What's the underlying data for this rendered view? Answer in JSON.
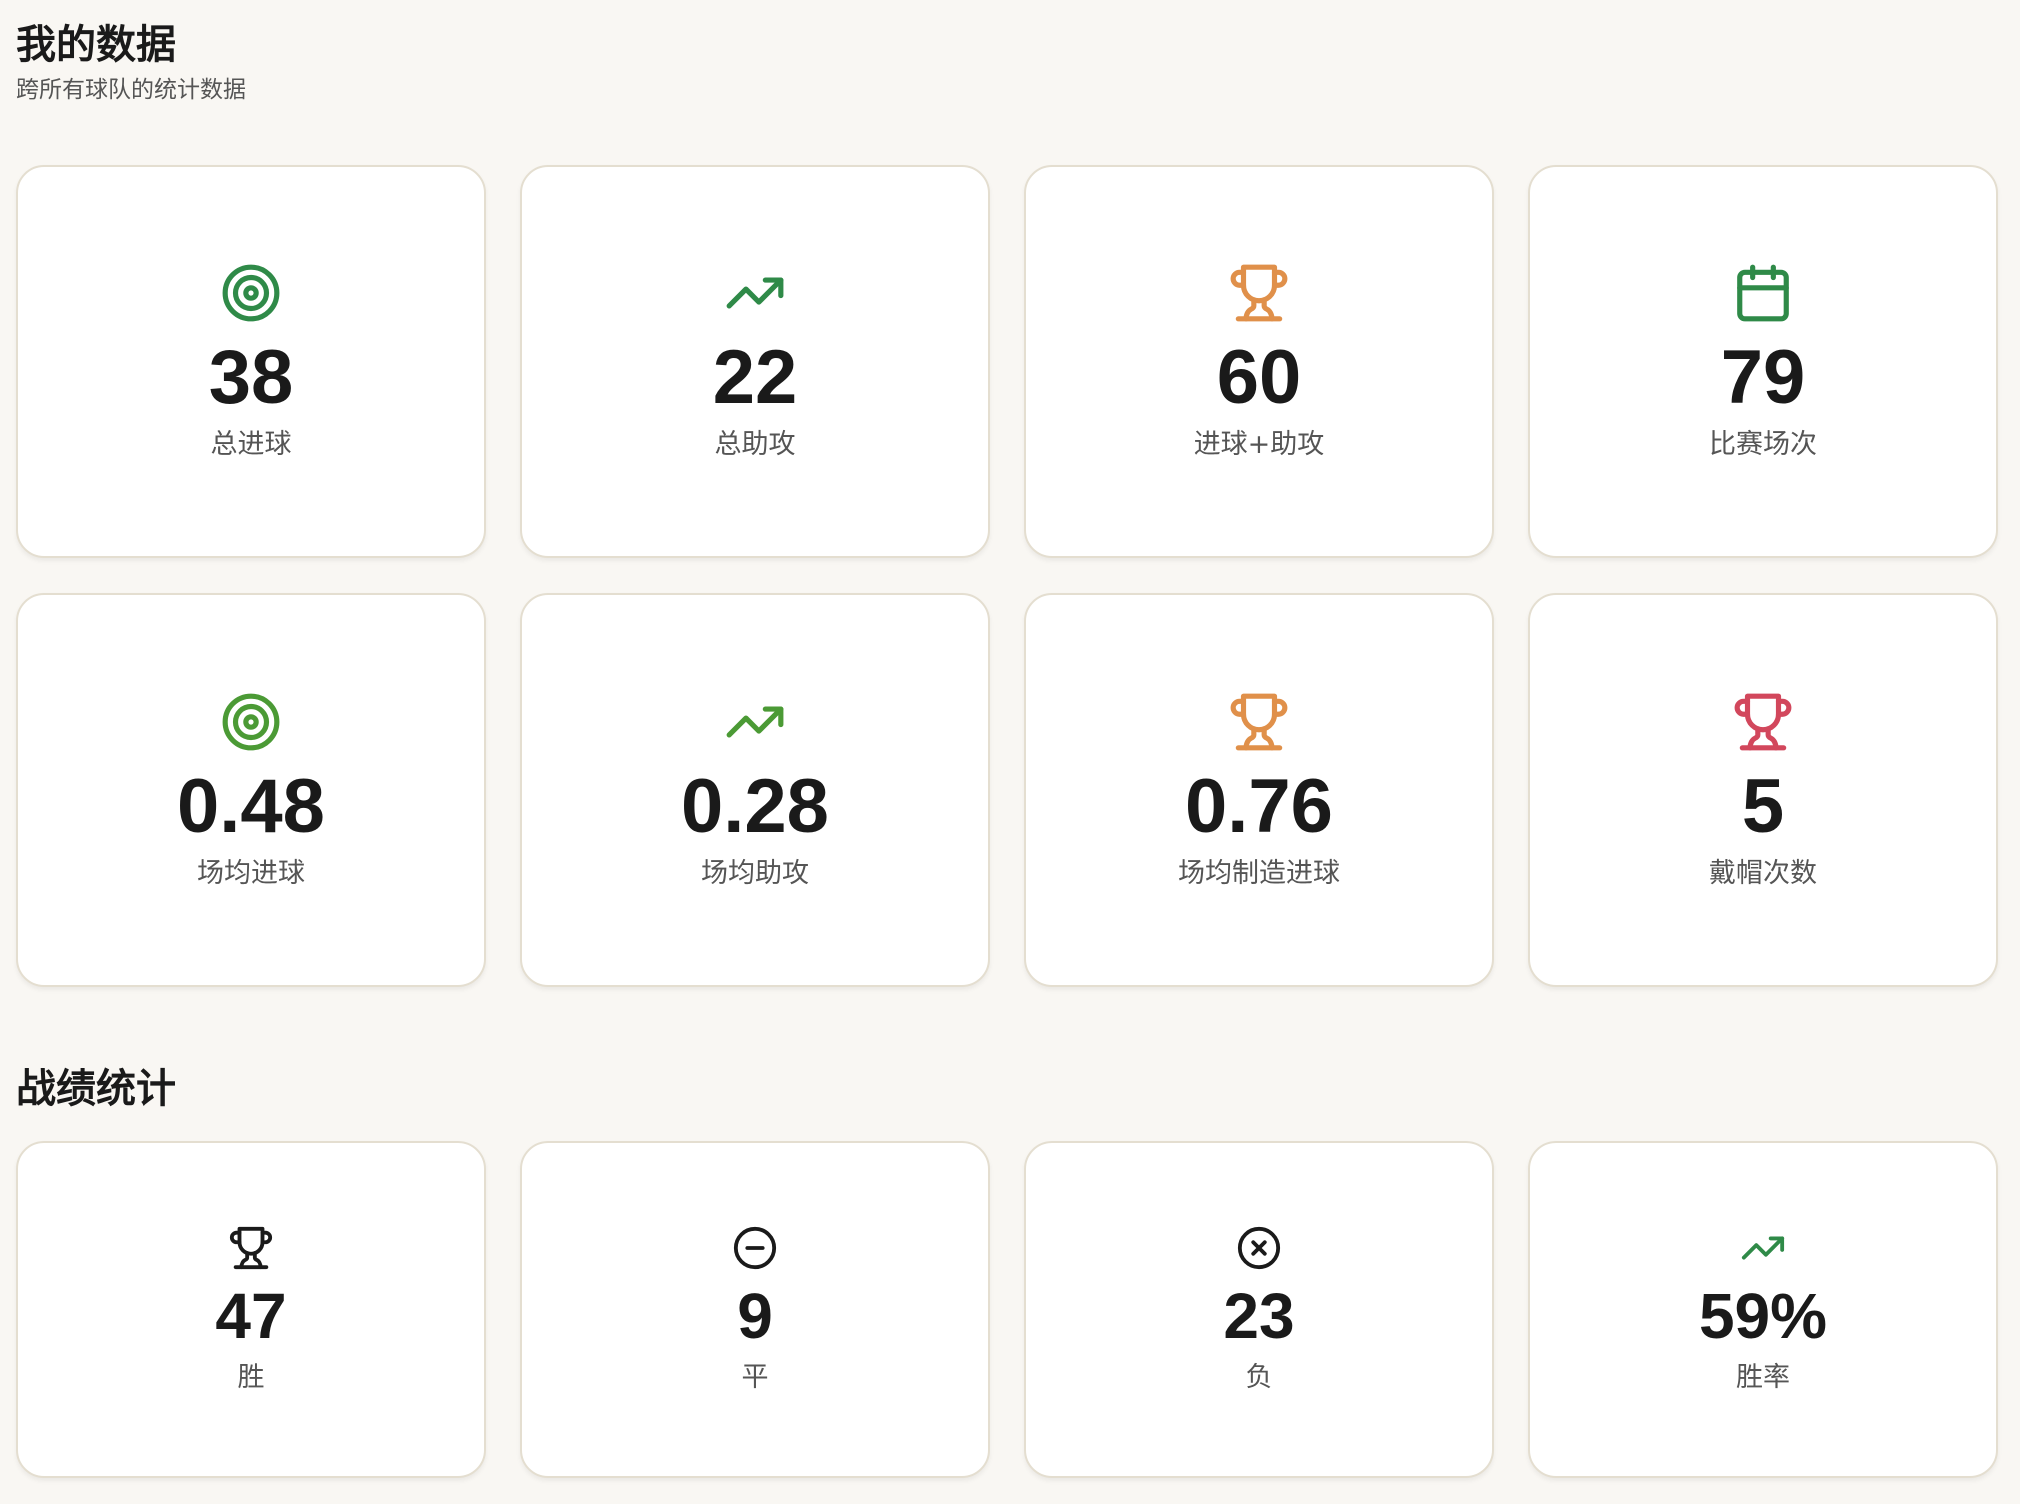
{
  "header": {
    "title": "我的数据",
    "subtitle": "跨所有球队的统计数据"
  },
  "stats": [
    {
      "icon": "target",
      "color": "#2f8a48",
      "value": "38",
      "label": "总进球"
    },
    {
      "icon": "trending-up",
      "color": "#2f8a48",
      "value": "22",
      "label": "总助攻"
    },
    {
      "icon": "trophy",
      "color": "#e0904a",
      "value": "60",
      "label": "进球+助攻"
    },
    {
      "icon": "calendar",
      "color": "#2f8a48",
      "value": "79",
      "label": "比赛场次"
    },
    {
      "icon": "target",
      "color": "#4b9a35",
      "value": "0.48",
      "label": "场均进球"
    },
    {
      "icon": "trending-up",
      "color": "#4b9a35",
      "value": "0.28",
      "label": "场均助攻"
    },
    {
      "icon": "trophy",
      "color": "#e0904a",
      "value": "0.76",
      "label": "场均制造进球"
    },
    {
      "icon": "trophy",
      "color": "#d2475c",
      "value": "5",
      "label": "戴帽次数"
    }
  ],
  "record": {
    "title": "战绩统计",
    "items": [
      {
        "icon": "trophy",
        "color": "#1a1a1a",
        "value": "47",
        "label": "胜"
      },
      {
        "icon": "circle-minus",
        "color": "#1a1a1a",
        "value": "9",
        "label": "平"
      },
      {
        "icon": "circle-x",
        "color": "#1a1a1a",
        "value": "23",
        "label": "负"
      },
      {
        "icon": "trending-up",
        "color": "#2f8a48",
        "value": "59%",
        "label": "胜率"
      }
    ]
  }
}
